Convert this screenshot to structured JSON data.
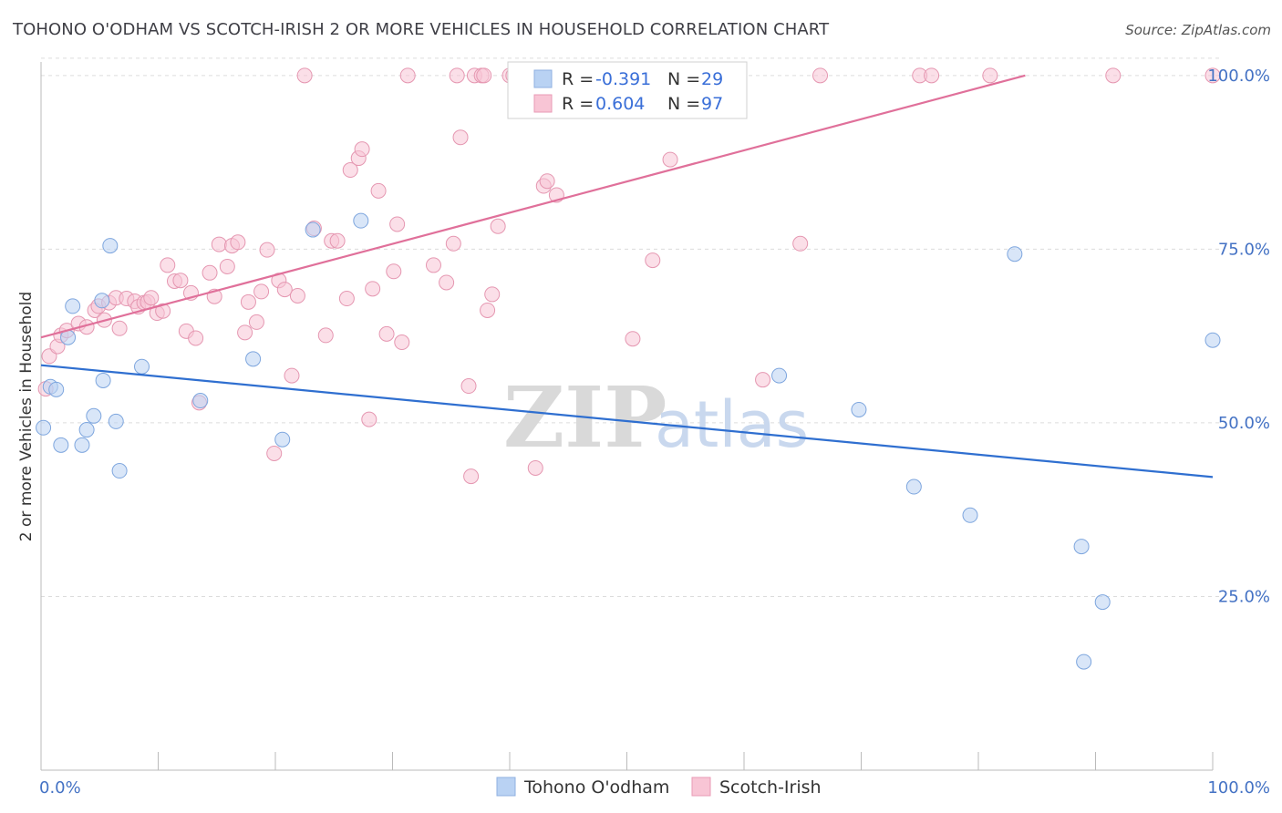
{
  "title": "TOHONO O'ODHAM VS SCOTCH-IRISH 2 OR MORE VEHICLES IN HOUSEHOLD CORRELATION CHART",
  "source": "Source: ZipAtlas.com",
  "watermark": {
    "zip": "ZIP",
    "atlas": "atlas"
  },
  "legend": {
    "r_label": "R =",
    "n_label": "N =",
    "rows": [
      {
        "r": "-0.391",
        "n": "29"
      },
      {
        "r": "0.604",
        "n": "97"
      }
    ]
  },
  "chart_data": {
    "type": "scatter",
    "title": "TOHONO O'ODHAM VS SCOTCH-IRISH 2 OR MORE VEHICLES IN HOUSEHOLD CORRELATION CHART",
    "xlabel": "",
    "ylabel": "2 or more Vehicles in Household",
    "xlim": [
      0,
      100
    ],
    "ylim": [
      0,
      103
    ],
    "x_tick_labels": [
      "0.0%",
      "100.0%"
    ],
    "y_ticks": [
      25,
      50,
      75,
      100
    ],
    "y_tick_labels": [
      "25.0%",
      "50.0%",
      "75.0%",
      "100.0%"
    ],
    "grid": "horizontal dashed",
    "legend_position": "top-center",
    "colors": {
      "tohono": "#aac8f0",
      "tohono_line": "#2f6fd0",
      "scotch": "#f5b8cb",
      "scotch_line": "#e0709a"
    },
    "series": [
      {
        "name": "Tohono O'odham",
        "color": "#aac8f0",
        "trend": {
          "x": [
            0,
            100
          ],
          "y": [
            58.3,
            42.2
          ]
        },
        "points": [
          [
            0.2,
            49.3
          ],
          [
            0.8,
            55.2
          ],
          [
            1.3,
            54.8
          ],
          [
            1.7,
            46.8
          ],
          [
            2.3,
            62.3
          ],
          [
            2.7,
            66.8
          ],
          [
            3.5,
            46.8
          ],
          [
            3.9,
            49.0
          ],
          [
            4.5,
            51.0
          ],
          [
            5.2,
            67.6
          ],
          [
            5.3,
            56.1
          ],
          [
            5.9,
            75.5
          ],
          [
            6.4,
            50.2
          ],
          [
            6.7,
            43.1
          ],
          [
            8.6,
            58.1
          ],
          [
            13.6,
            53.2
          ],
          [
            18.1,
            59.2
          ],
          [
            20.6,
            47.6
          ],
          [
            23.2,
            77.8
          ],
          [
            27.3,
            79.1
          ],
          [
            63.0,
            56.8
          ],
          [
            69.8,
            51.9
          ],
          [
            74.5,
            40.8
          ],
          [
            79.3,
            36.7
          ],
          [
            83.1,
            74.3
          ],
          [
            88.8,
            32.2
          ],
          [
            90.6,
            24.2
          ],
          [
            89.0,
            15.6
          ],
          [
            100.0,
            61.9
          ]
        ]
      },
      {
        "name": "Scotch-Irish",
        "color": "#f5b8cb",
        "trend": {
          "x": [
            0,
            84
          ],
          "y": [
            62.3,
            100
          ]
        },
        "points": [
          [
            0.4,
            54.9
          ],
          [
            0.7,
            59.6
          ],
          [
            1.4,
            61.0
          ],
          [
            1.7,
            62.6
          ],
          [
            2.2,
            63.3
          ],
          [
            3.2,
            64.3
          ],
          [
            3.9,
            63.8
          ],
          [
            4.6,
            66.2
          ],
          [
            4.9,
            66.8
          ],
          [
            5.4,
            64.8
          ],
          [
            5.8,
            67.3
          ],
          [
            6.4,
            68.0
          ],
          [
            6.7,
            63.6
          ],
          [
            7.3,
            67.9
          ],
          [
            8.0,
            67.5
          ],
          [
            8.3,
            66.7
          ],
          [
            8.8,
            67.3
          ],
          [
            9.1,
            67.4
          ],
          [
            9.4,
            68.0
          ],
          [
            9.9,
            65.8
          ],
          [
            10.4,
            66.1
          ],
          [
            10.8,
            72.7
          ],
          [
            11.4,
            70.4
          ],
          [
            11.9,
            70.5
          ],
          [
            12.4,
            63.2
          ],
          [
            12.8,
            68.7
          ],
          [
            13.2,
            62.2
          ],
          [
            13.5,
            52.9
          ],
          [
            14.4,
            71.6
          ],
          [
            14.8,
            68.2
          ],
          [
            15.2,
            75.7
          ],
          [
            15.9,
            72.5
          ],
          [
            16.3,
            75.5
          ],
          [
            16.8,
            76.0
          ],
          [
            17.4,
            63.0
          ],
          [
            17.7,
            67.4
          ],
          [
            18.4,
            64.5
          ],
          [
            18.8,
            68.9
          ],
          [
            19.3,
            74.9
          ],
          [
            19.9,
            45.6
          ],
          [
            20.3,
            70.5
          ],
          [
            20.8,
            69.2
          ],
          [
            21.4,
            56.8
          ],
          [
            21.9,
            68.3
          ],
          [
            23.3,
            78.0
          ],
          [
            24.3,
            62.6
          ],
          [
            24.8,
            76.2
          ],
          [
            25.3,
            76.2
          ],
          [
            26.1,
            67.9
          ],
          [
            26.4,
            86.4
          ],
          [
            27.1,
            88.1
          ],
          [
            27.4,
            89.4
          ],
          [
            28.0,
            50.5
          ],
          [
            28.3,
            69.3
          ],
          [
            28.8,
            83.4
          ],
          [
            29.5,
            62.8
          ],
          [
            30.1,
            71.8
          ],
          [
            30.4,
            78.6
          ],
          [
            30.8,
            61.6
          ],
          [
            33.5,
            72.7
          ],
          [
            34.6,
            70.2
          ],
          [
            35.2,
            75.8
          ],
          [
            35.8,
            91.1
          ],
          [
            36.5,
            55.3
          ],
          [
            36.7,
            42.3
          ],
          [
            38.1,
            66.2
          ],
          [
            38.5,
            68.5
          ],
          [
            39.0,
            78.3
          ],
          [
            42.2,
            43.5
          ],
          [
            42.9,
            84.1
          ],
          [
            43.2,
            84.8
          ],
          [
            44.0,
            82.8
          ],
          [
            50.5,
            62.1
          ],
          [
            52.2,
            73.4
          ],
          [
            53.7,
            87.9
          ],
          [
            61.6,
            56.2
          ],
          [
            64.8,
            75.8
          ],
          [
            22.5,
            100
          ],
          [
            31.3,
            100
          ],
          [
            35.5,
            100
          ],
          [
            37.0,
            100
          ],
          [
            37.6,
            100
          ],
          [
            37.8,
            100
          ],
          [
            40.0,
            100
          ],
          [
            40.3,
            100
          ],
          [
            42.5,
            100
          ],
          [
            43.0,
            100
          ],
          [
            45.0,
            100
          ],
          [
            46.2,
            100
          ],
          [
            48.0,
            100
          ],
          [
            52.5,
            100
          ],
          [
            56.0,
            100
          ],
          [
            66.5,
            100
          ],
          [
            75.0,
            100
          ],
          [
            76.0,
            100
          ],
          [
            81.0,
            100
          ],
          [
            91.5,
            100
          ],
          [
            100.0,
            100
          ]
        ]
      }
    ]
  }
}
